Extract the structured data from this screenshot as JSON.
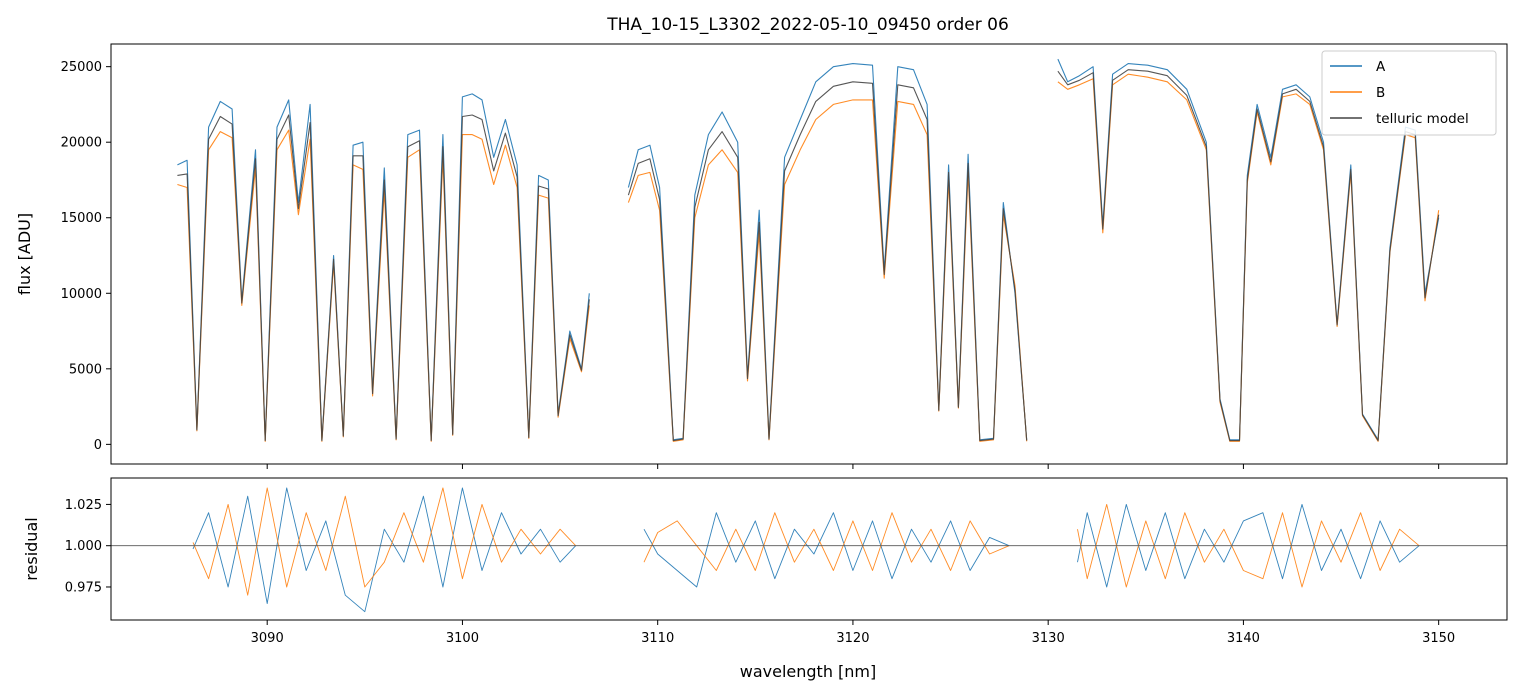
{
  "chart_data": [
    {
      "type": "line",
      "title": "THA_10-15_L3302_2022-05-10_09450  order 06",
      "xlabel": "",
      "ylabel": "flux [ADU]",
      "xlim": [
        3082,
        3153.5
      ],
      "ylim": [
        -1300,
        26500
      ],
      "xticks": [
        3090,
        3100,
        3110,
        3120,
        3130,
        3140,
        3150
      ],
      "yticks": [
        0,
        5000,
        10000,
        15000,
        20000,
        25000
      ],
      "ytick_labels": [
        "0",
        "5000",
        "10000",
        "15000",
        "20000",
        "25000"
      ],
      "legend": {
        "placement": "top-right",
        "entries": [
          "A",
          "B",
          "telluric model"
        ]
      },
      "grid": false,
      "series": [
        {
          "name": "A",
          "color": "#1f77b4",
          "x": [
            3085.4,
            3085.9,
            3086.4,
            3087.0,
            3087.6,
            3088.2,
            3088.7,
            3089.4,
            3089.9,
            3090.5,
            3091.1,
            3091.6,
            3092.2,
            3092.8,
            3093.4,
            3093.9,
            3094.4,
            3094.9,
            3095.4,
            3096.0,
            3096.6,
            3097.2,
            3097.8,
            3098.4,
            3099.0,
            3099.5,
            3100.0,
            3100.5,
            3101.0,
            3101.6,
            3102.2,
            3102.8,
            3103.4,
            3103.9,
            3104.4,
            3104.9,
            3105.5,
            3106.1,
            3106.5
          ],
          "y": [
            18500,
            18800,
            1000,
            21000,
            22700,
            22200,
            9500,
            19500,
            300,
            21000,
            22800,
            16000,
            22500,
            300,
            12500,
            600,
            19800,
            20000,
            3500,
            18300,
            400,
            20500,
            20800,
            300,
            20500,
            700,
            23000,
            23200,
            22800,
            19000,
            21500,
            18500,
            500,
            17800,
            17500,
            2000,
            7500,
            5000,
            10000
          ]
        },
        {
          "name": "A",
          "color": "#1f77b4",
          "x": [
            3108.5,
            3109.0,
            3109.6,
            3110.1,
            3110.8,
            3111.3,
            3111.9,
            3112.6,
            3113.3,
            3114.1,
            3114.6,
            3115.2,
            3115.7,
            3116.5,
            3117.3,
            3118.1,
            3119.0,
            3120.0,
            3121.0,
            3121.6,
            3122.3,
            3123.1,
            3123.8,
            3124.4,
            3124.9,
            3125.4,
            3125.9,
            3126.5,
            3127.2,
            3127.7,
            3128.3,
            3128.9
          ],
          "y": [
            17000,
            19500,
            19800,
            17000,
            300,
            400,
            16500,
            20500,
            22000,
            20000,
            4500,
            15500,
            400,
            19000,
            21500,
            24000,
            25000,
            25200,
            25100,
            11500,
            25000,
            24800,
            22500,
            2300,
            18500,
            2500,
            19200,
            300,
            400,
            16000,
            10000,
            300
          ]
        },
        {
          "name": "A",
          "color": "#1f77b4",
          "x": [
            3130.5,
            3131.0,
            3131.6,
            3132.3,
            3132.8,
            3133.3,
            3134.1,
            3135.1,
            3136.1,
            3137.1,
            3138.1,
            3138.8,
            3139.3,
            3139.8,
            3140.2,
            3140.7,
            3141.4,
            3142.0,
            3142.7,
            3143.4,
            3144.1,
            3144.8,
            3145.5,
            3146.1,
            3146.9,
            3147.5,
            3148.3,
            3148.8,
            3149.3,
            3150.0
          ],
          "y": [
            25500,
            24000,
            24400,
            25000,
            14500,
            24500,
            25200,
            25100,
            24800,
            23500,
            20000,
            3000,
            300,
            300,
            17800,
            22500,
            19000,
            23500,
            23800,
            23000,
            20000,
            8000,
            18500,
            2000,
            300,
            13000,
            21000,
            20800,
            10000,
            15000
          ]
        },
        {
          "name": "B",
          "color": "#ff7f0e",
          "x": [
            3085.4,
            3085.9,
            3086.4,
            3087.0,
            3087.6,
            3088.2,
            3088.7,
            3089.4,
            3089.9,
            3090.5,
            3091.1,
            3091.6,
            3092.2,
            3092.8,
            3093.4,
            3093.9,
            3094.4,
            3094.9,
            3095.4,
            3096.0,
            3096.6,
            3097.2,
            3097.8,
            3098.4,
            3099.0,
            3099.5,
            3100.0,
            3100.5,
            3101.0,
            3101.6,
            3102.2,
            3102.8,
            3103.4,
            3103.9,
            3104.4,
            3104.9,
            3105.5,
            3106.1,
            3106.5
          ],
          "y": [
            17200,
            17000,
            900,
            19500,
            20700,
            20300,
            9200,
            18300,
            200,
            19500,
            20800,
            15200,
            20200,
            200,
            12000,
            500,
            18500,
            18200,
            3200,
            16800,
            300,
            19000,
            19500,
            200,
            19000,
            600,
            20500,
            20500,
            20200,
            17200,
            19800,
            17000,
            400,
            16500,
            16300,
            1800,
            7000,
            4800,
            9200
          ]
        },
        {
          "name": "B",
          "color": "#ff7f0e",
          "x": [
            3108.5,
            3109.0,
            3109.6,
            3110.1,
            3110.8,
            3111.3,
            3111.9,
            3112.6,
            3113.3,
            3114.1,
            3114.6,
            3115.2,
            3115.7,
            3116.5,
            3117.3,
            3118.1,
            3119.0,
            3120.0,
            3121.0,
            3121.6,
            3122.3,
            3123.1,
            3123.8,
            3124.4,
            3124.9,
            3125.4,
            3125.9,
            3126.5,
            3127.2,
            3127.7,
            3128.3,
            3128.9
          ],
          "y": [
            16000,
            17800,
            18000,
            15500,
            200,
            300,
            15000,
            18500,
            19500,
            18000,
            4200,
            14000,
            300,
            17200,
            19500,
            21500,
            22500,
            22800,
            22800,
            11000,
            22700,
            22500,
            20500,
            2200,
            17500,
            2400,
            18000,
            200,
            300,
            15200,
            10500,
            200
          ]
        },
        {
          "name": "B",
          "color": "#ff7f0e",
          "x": [
            3130.5,
            3131.0,
            3131.6,
            3132.3,
            3132.8,
            3133.3,
            3134.1,
            3135.1,
            3136.1,
            3137.1,
            3138.1,
            3138.8,
            3139.3,
            3139.8,
            3140.2,
            3140.7,
            3141.4,
            3142.0,
            3142.7,
            3143.4,
            3144.1,
            3144.8,
            3145.5,
            3146.1,
            3146.9,
            3147.5,
            3148.3,
            3148.8,
            3149.3,
            3150.0
          ],
          "y": [
            24000,
            23500,
            23800,
            24200,
            14000,
            23800,
            24500,
            24300,
            24000,
            22800,
            19500,
            2800,
            200,
            200,
            17300,
            22000,
            18500,
            23000,
            23200,
            22500,
            19500,
            7800,
            18000,
            1900,
            200,
            12700,
            20500,
            20300,
            9500,
            15500
          ]
        },
        {
          "name": "telluric model",
          "color": "#444444",
          "x": [
            3085.4,
            3085.9,
            3086.4,
            3087.0,
            3087.6,
            3088.2,
            3088.7,
            3089.4,
            3089.9,
            3090.5,
            3091.1,
            3091.6,
            3092.2,
            3092.8,
            3093.4,
            3093.9,
            3094.4,
            3094.9,
            3095.4,
            3096.0,
            3096.6,
            3097.2,
            3097.8,
            3098.4,
            3099.0,
            3099.5,
            3100.0,
            3100.5,
            3101.0,
            3101.6,
            3102.2,
            3102.8,
            3103.4,
            3103.9,
            3104.4,
            3104.9,
            3105.5,
            3106.1,
            3106.5
          ],
          "y": [
            17800,
            17900,
            950,
            20200,
            21700,
            21200,
            9350,
            18900,
            250,
            20200,
            21800,
            15600,
            21300,
            250,
            12250,
            550,
            19100,
            19100,
            3350,
            17500,
            350,
            19700,
            20100,
            250,
            19700,
            650,
            21700,
            21800,
            21500,
            18100,
            20600,
            17700,
            450,
            17100,
            16900,
            1900,
            7250,
            4900,
            9600
          ]
        },
        {
          "name": "telluric model",
          "color": "#444444",
          "x": [
            3108.5,
            3109.0,
            3109.6,
            3110.1,
            3110.8,
            3111.3,
            3111.9,
            3112.6,
            3113.3,
            3114.1,
            3114.6,
            3115.2,
            3115.7,
            3116.5,
            3117.3,
            3118.1,
            3119.0,
            3120.0,
            3121.0,
            3121.6,
            3122.3,
            3123.1,
            3123.8,
            3124.4,
            3124.9,
            3125.4,
            3125.9,
            3126.5,
            3127.2,
            3127.7,
            3128.3,
            3128.9
          ],
          "y": [
            16500,
            18600,
            18900,
            16200,
            250,
            350,
            15700,
            19500,
            20700,
            19000,
            4350,
            14700,
            350,
            18100,
            20500,
            22700,
            23700,
            24000,
            23900,
            11250,
            23800,
            23600,
            21500,
            2250,
            18000,
            2450,
            18600,
            250,
            350,
            15600,
            10200,
            250
          ]
        },
        {
          "name": "telluric model",
          "color": "#444444",
          "x": [
            3130.5,
            3131.0,
            3131.6,
            3132.3,
            3132.8,
            3133.3,
            3134.1,
            3135.1,
            3136.1,
            3137.1,
            3138.1,
            3138.8,
            3139.3,
            3139.8,
            3140.2,
            3140.7,
            3141.4,
            3142.0,
            3142.7,
            3143.4,
            3144.1,
            3144.8,
            3145.5,
            3146.1,
            3146.9,
            3147.5,
            3148.3,
            3148.8,
            3149.3,
            3150.0
          ],
          "y": [
            24700,
            23800,
            24100,
            24600,
            14250,
            24100,
            24800,
            24700,
            24400,
            23100,
            19700,
            2900,
            250,
            250,
            17500,
            22200,
            18700,
            23200,
            23500,
            22700,
            19700,
            7900,
            18200,
            1950,
            250,
            12800,
            20700,
            20500,
            9700,
            15200
          ]
        }
      ]
    },
    {
      "type": "line",
      "xlabel": "wavelength [nm]",
      "ylabel": "residual",
      "xlim": [
        3082,
        3153.5
      ],
      "ylim": [
        0.955,
        1.041
      ],
      "xticks": [
        3090,
        3100,
        3110,
        3120,
        3130,
        3140,
        3150
      ],
      "xtick_labels": [
        "3090",
        "3100",
        "3110",
        "3120",
        "3130",
        "3140",
        "3150"
      ],
      "yticks": [
        0.975,
        1.0,
        1.025
      ],
      "ytick_labels": [
        "0.975",
        "1.000",
        "1.025"
      ],
      "reference_line": 1.0,
      "grid": false,
      "series": [
        {
          "name": "A",
          "color": "#1f77b4",
          "x": [
            3086.2,
            3087.0,
            3088.0,
            3089.0,
            3090.0,
            3091.0,
            3092.0,
            3093.0,
            3094.0,
            3095.0,
            3096.0,
            3097.0,
            3098.0,
            3099.0,
            3100.0,
            3101.0,
            3102.0,
            3103.0,
            3104.0,
            3105.0,
            3105.8
          ],
          "y": [
            0.998,
            1.02,
            0.975,
            1.03,
            0.965,
            1.035,
            0.985,
            1.015,
            0.97,
            0.96,
            1.01,
            0.99,
            1.03,
            0.975,
            1.035,
            0.985,
            1.02,
            0.995,
            1.01,
            0.99,
            1.0
          ]
        },
        {
          "name": "A",
          "color": "#1f77b4",
          "x": [
            3109.3,
            3110.0,
            3111.0,
            3112.0,
            3113.0,
            3114.0,
            3115.0,
            3116.0,
            3117.0,
            3118.0,
            3119.0,
            3120.0,
            3121.0,
            3122.0,
            3123.0,
            3124.0,
            3125.0,
            3126.0,
            3127.0,
            3128.0
          ],
          "y": [
            1.01,
            0.995,
            0.985,
            0.975,
            1.02,
            0.99,
            1.015,
            0.98,
            1.01,
            0.995,
            1.02,
            0.985,
            1.015,
            0.98,
            1.01,
            0.99,
            1.015,
            0.985,
            1.005,
            1.0
          ]
        },
        {
          "name": "A",
          "color": "#1f77b4",
          "x": [
            3131.5,
            3132.0,
            3133.0,
            3134.0,
            3135.0,
            3136.0,
            3137.0,
            3138.0,
            3139.0,
            3140.0,
            3141.0,
            3142.0,
            3143.0,
            3144.0,
            3145.0,
            3146.0,
            3147.0,
            3148.0,
            3149.0
          ],
          "y": [
            0.99,
            1.02,
            0.975,
            1.025,
            0.985,
            1.02,
            0.98,
            1.01,
            0.99,
            1.015,
            1.02,
            0.98,
            1.025,
            0.985,
            1.01,
            0.98,
            1.015,
            0.99,
            1.0
          ]
        },
        {
          "name": "B",
          "color": "#ff7f0e",
          "x": [
            3086.2,
            3087.0,
            3088.0,
            3089.0,
            3090.0,
            3091.0,
            3092.0,
            3093.0,
            3094.0,
            3095.0,
            3096.0,
            3097.0,
            3098.0,
            3099.0,
            3100.0,
            3101.0,
            3102.0,
            3103.0,
            3104.0,
            3105.0,
            3105.8
          ],
          "y": [
            1.002,
            0.98,
            1.025,
            0.97,
            1.035,
            0.975,
            1.02,
            0.985,
            1.03,
            0.975,
            0.99,
            1.02,
            0.99,
            1.035,
            0.98,
            1.025,
            0.99,
            1.01,
            0.995,
            1.01,
            1.0
          ]
        },
        {
          "name": "B",
          "color": "#ff7f0e",
          "x": [
            3109.3,
            3110.0,
            3111.0,
            3112.0,
            3113.0,
            3114.0,
            3115.0,
            3116.0,
            3117.0,
            3118.0,
            3119.0,
            3120.0,
            3121.0,
            3122.0,
            3123.0,
            3124.0,
            3125.0,
            3126.0,
            3127.0,
            3128.0
          ],
          "y": [
            0.99,
            1.008,
            1.015,
            1.0,
            0.985,
            1.01,
            0.985,
            1.02,
            0.99,
            1.01,
            0.985,
            1.015,
            0.985,
            1.02,
            0.99,
            1.01,
            0.985,
            1.015,
            0.995,
            1.0
          ]
        },
        {
          "name": "B",
          "color": "#ff7f0e",
          "x": [
            3131.5,
            3132.0,
            3133.0,
            3134.0,
            3135.0,
            3136.0,
            3137.0,
            3138.0,
            3139.0,
            3140.0,
            3141.0,
            3142.0,
            3143.0,
            3144.0,
            3145.0,
            3146.0,
            3147.0,
            3148.0,
            3149.0
          ],
          "y": [
            1.01,
            0.98,
            1.025,
            0.975,
            1.015,
            0.98,
            1.02,
            0.99,
            1.01,
            0.985,
            0.98,
            1.02,
            0.975,
            1.015,
            0.99,
            1.02,
            0.985,
            1.01,
            1.0
          ]
        }
      ]
    }
  ]
}
